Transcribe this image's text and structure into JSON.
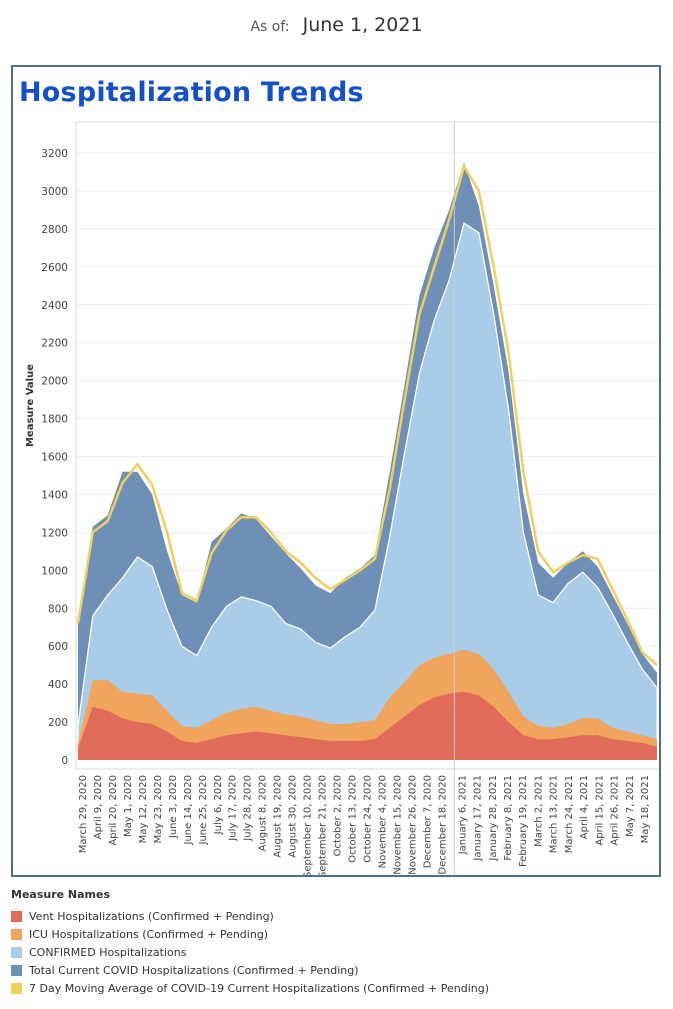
{
  "header": {
    "asof_prefix": "As of:",
    "asof_date": "June 1, 2021"
  },
  "panel": {
    "title": "Hospitalization Trends"
  },
  "legend": {
    "title": "Measure Names",
    "items": [
      {
        "label": "Vent Hospitalizations (Confirmed + Pending)",
        "color": "#e06b5a"
      },
      {
        "label": "ICU Hospitalizations (Confirmed + Pending)",
        "color": "#f0a45c"
      },
      {
        "label": "CONFIRMED Hospitalizations",
        "color": "#a9cde8"
      },
      {
        "label": "Total Current COVID Hospitalizations (Confirmed + Pending)",
        "color": "#6e8fb6"
      },
      {
        "label": "7 Day Moving Average of COVID-19 Current Hospitalizations (Confirmed + Pending)",
        "color": "#f2cf5b"
      }
    ]
  },
  "chart_data": {
    "type": "area",
    "ylabel": "Measure Value",
    "ylim": [
      0,
      3300
    ],
    "yticks": [
      0,
      200,
      400,
      600,
      800,
      1000,
      1200,
      1400,
      1600,
      1800,
      2000,
      2200,
      2400,
      2600,
      2800,
      3000,
      3200
    ],
    "grid": true,
    "legend_position": "bottom",
    "x_tick_labels": [
      "March 29, 2020",
      "April 9, 2020",
      "April 20, 2020",
      "May 1, 2020",
      "May 12, 2020",
      "May 23, 2020",
      "June 3, 2020",
      "June 14, 2020",
      "June 25, 2020",
      "July 6, 2020",
      "July 17, 2020",
      "July 28, 2020",
      "August 8, 2020",
      "August 19, 2020",
      "August 30, 2020",
      "September 10, 2020",
      "September 21, 2020",
      "October 2, 2020",
      "October 13, 2020",
      "October 24, 2020",
      "November 4, 2020",
      "November 15, 2020",
      "November 26, 2020",
      "December 7, 2020",
      "December 18, 2020",
      "January 6, 2021",
      "January 17, 2021",
      "January 28, 2021",
      "February 8, 2021",
      "February 19, 2021",
      "March 2, 2021",
      "March 13, 2021",
      "March 24, 2021",
      "April 4, 2021",
      "April 15, 2021",
      "April 26, 2021",
      "May 7, 2021",
      "May 18, 2021"
    ],
    "x": [
      "2020-03-29",
      "2020-04-09",
      "2020-04-20",
      "2020-05-01",
      "2020-05-12",
      "2020-05-23",
      "2020-06-03",
      "2020-06-14",
      "2020-06-25",
      "2020-07-06",
      "2020-07-17",
      "2020-07-28",
      "2020-08-08",
      "2020-08-19",
      "2020-08-30",
      "2020-09-10",
      "2020-09-21",
      "2020-10-02",
      "2020-10-13",
      "2020-10-24",
      "2020-11-04",
      "2020-11-15",
      "2020-11-26",
      "2020-12-07",
      "2020-12-18",
      "2020-12-29",
      "2021-01-06",
      "2021-01-17",
      "2021-01-28",
      "2021-02-08",
      "2021-02-19",
      "2021-03-02",
      "2021-03-13",
      "2021-03-24",
      "2021-04-04",
      "2021-04-15",
      "2021-04-26",
      "2021-05-07",
      "2021-05-18",
      "2021-06-01"
    ],
    "series": [
      {
        "name": "Total Current COVID Hospitalizations (Confirmed + Pending)",
        "color": "#6e8fb6",
        "values": [
          720,
          1230,
          1290,
          1520,
          1520,
          1400,
          1100,
          870,
          830,
          1150,
          1220,
          1300,
          1270,
          1180,
          1090,
          1010,
          920,
          880,
          960,
          1010,
          1080,
          1520,
          1980,
          2450,
          2700,
          2900,
          3150,
          2920,
          2500,
          2050,
          1400,
          1040,
          960,
          1040,
          1100,
          1020,
          870,
          720,
          560,
          460
        ]
      },
      {
        "name": "CONFIRMED Hospitalizations",
        "color": "#a9cde8",
        "values": [
          180,
          760,
          870,
          960,
          1070,
          1020,
          790,
          600,
          550,
          700,
          810,
          860,
          840,
          810,
          720,
          690,
          620,
          590,
          650,
          700,
          790,
          1180,
          1620,
          2040,
          2320,
          2530,
          2830,
          2780,
          2350,
          1850,
          1200,
          870,
          830,
          930,
          990,
          910,
          770,
          620,
          480,
          380
        ]
      },
      {
        "name": "ICU Hospitalizations (Confirmed + Pending)",
        "color": "#f0a45c",
        "values": [
          90,
          420,
          420,
          360,
          350,
          340,
          260,
          180,
          170,
          210,
          250,
          270,
          280,
          260,
          240,
          230,
          210,
          190,
          190,
          200,
          210,
          330,
          410,
          500,
          540,
          560,
          580,
          560,
          480,
          360,
          230,
          180,
          170,
          190,
          220,
          220,
          170,
          150,
          130,
          110
        ]
      },
      {
        "name": "Vent Hospitalizations (Confirmed + Pending)",
        "color": "#e06b5a",
        "values": [
          60,
          280,
          260,
          220,
          200,
          190,
          150,
          100,
          90,
          110,
          130,
          140,
          150,
          140,
          130,
          120,
          110,
          100,
          100,
          100,
          110,
          170,
          230,
          290,
          330,
          350,
          360,
          340,
          280,
          200,
          130,
          110,
          110,
          120,
          130,
          130,
          110,
          100,
          90,
          70
        ]
      },
      {
        "name": "7 Day Moving Average of COVID-19 Current Hospitalizations (Confirmed + Pending)",
        "color": "#f2cf5b",
        "values": [
          720,
          1200,
          1260,
          1460,
          1560,
          1450,
          1200,
          880,
          840,
          1090,
          1210,
          1280,
          1280,
          1200,
          1100,
          1040,
          960,
          900,
          950,
          1000,
          1060,
          1430,
          1900,
          2350,
          2600,
          2850,
          3130,
          3000,
          2600,
          2150,
          1520,
          1100,
          990,
          1040,
          1080,
          1060,
          900,
          740,
          570,
          500
        ]
      }
    ]
  }
}
